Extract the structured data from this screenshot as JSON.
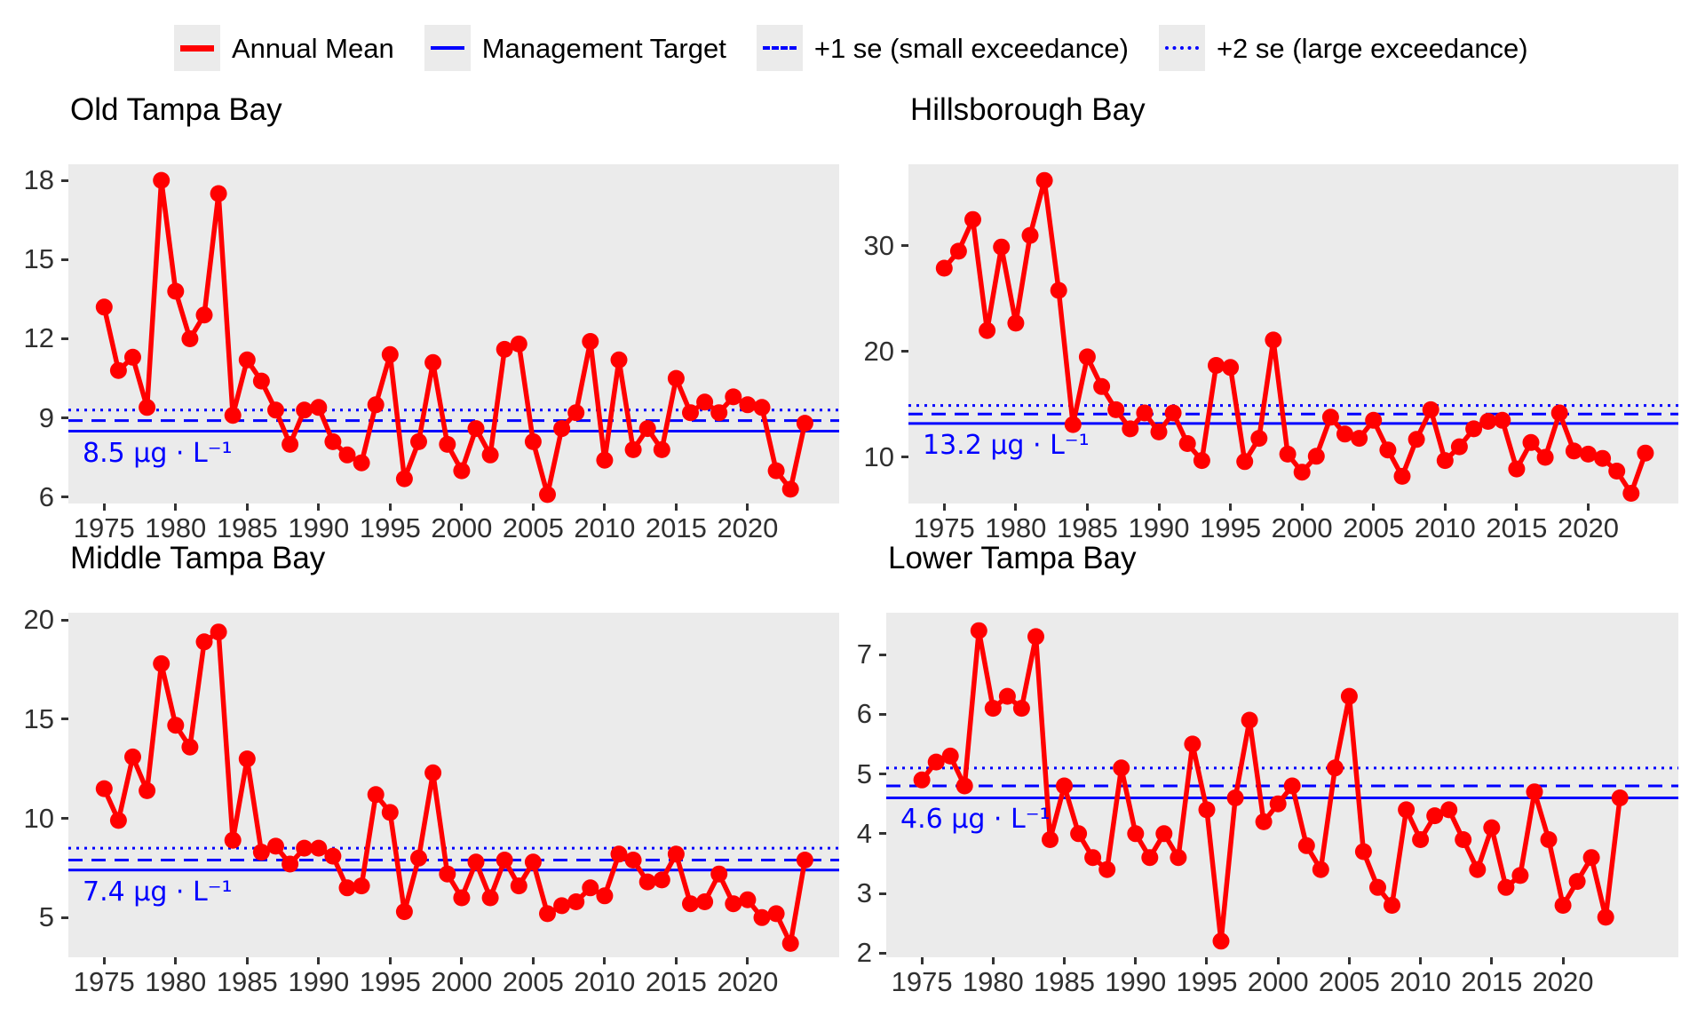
{
  "legend": {
    "items": [
      {
        "id": "annual-mean",
        "label": "Annual Mean",
        "swatch": "red-solid"
      },
      {
        "id": "management-target",
        "label": "Management Target",
        "swatch": "blue-solid"
      },
      {
        "id": "plus-1-se",
        "label": "+1 se (small exceedance)",
        "swatch": "blue-dashed"
      },
      {
        "id": "plus-2-se",
        "label": "+2 se (large exceedance)",
        "swatch": "blue-dotted"
      }
    ]
  },
  "colors": {
    "annual_mean": "#FF0000",
    "reference": "#0000FF",
    "panel_background": "#EBEBEB",
    "axis_text": "#303030",
    "tick_mark": "#333333",
    "legend_key_background": "#EBEBEB"
  },
  "chart_data": [
    {
      "type": "line",
      "title": "Old Tampa Bay",
      "annotation": "8.5 µg · L⁻¹",
      "target": 8.5,
      "plus1se": 8.9,
      "plus2se": 9.3,
      "yticks": [
        6,
        9,
        12,
        15,
        18
      ],
      "xticks": [
        1975,
        1980,
        1985,
        1990,
        1995,
        2000,
        2005,
        2010,
        2015,
        2020
      ],
      "ylim": [
        5.76,
        18.61
      ],
      "xlim": [
        1972.5,
        2026.4
      ],
      "years": [
        1975,
        1976,
        1977,
        1978,
        1979,
        1980,
        1981,
        1982,
        1983,
        1984,
        1985,
        1986,
        1987,
        1988,
        1989,
        1990,
        1991,
        1992,
        1993,
        1994,
        1995,
        1996,
        1997,
        1998,
        1999,
        2000,
        2001,
        2002,
        2003,
        2004,
        2005,
        2006,
        2007,
        2008,
        2009,
        2010,
        2011,
        2012,
        2013,
        2014,
        2015,
        2016,
        2017,
        2018,
        2019,
        2020,
        2021,
        2022,
        2023,
        2024
      ],
      "values": [
        13.2,
        10.8,
        11.3,
        9.4,
        18.0,
        13.8,
        12.0,
        12.9,
        17.5,
        9.1,
        11.2,
        10.4,
        9.3,
        8.0,
        9.3,
        9.4,
        8.1,
        7.6,
        7.3,
        9.5,
        11.4,
        6.7,
        8.1,
        11.1,
        8.0,
        7.0,
        8.6,
        7.6,
        11.6,
        11.8,
        8.1,
        6.1,
        8.6,
        9.2,
        11.9,
        7.4,
        11.2,
        7.8,
        8.6,
        7.8,
        10.5,
        9.2,
        9.6,
        9.2,
        9.8,
        9.5,
        9.4,
        7.0,
        6.3,
        8.8
      ]
    },
    {
      "type": "line",
      "title": "Hillsborough Bay",
      "annotation": "13.2 µg · L⁻¹",
      "target": 13.2,
      "plus1se": 14.1,
      "plus2se": 14.9,
      "yticks": [
        10,
        20,
        30
      ],
      "xticks": [
        1975,
        1980,
        1985,
        1990,
        1995,
        2000,
        2005,
        2010,
        2015,
        2020
      ],
      "ylim": [
        5.63,
        37.73
      ],
      "xlim": [
        1972.5,
        2026.3
      ],
      "years": [
        1975,
        1976,
        1977,
        1978,
        1979,
        1980,
        1981,
        1982,
        1983,
        1984,
        1985,
        1986,
        1987,
        1988,
        1989,
        1990,
        1991,
        1992,
        1993,
        1994,
        1995,
        1996,
        1997,
        1998,
        1999,
        2000,
        2001,
        2002,
        2003,
        2004,
        2005,
        2006,
        2007,
        2008,
        2009,
        2010,
        2011,
        2012,
        2013,
        2014,
        2015,
        2016,
        2017,
        2018,
        2019,
        2020,
        2021,
        2022,
        2023,
        2024
      ],
      "values": [
        27.9,
        29.5,
        32.5,
        22.0,
        29.9,
        22.7,
        31.0,
        36.2,
        25.8,
        13.1,
        19.5,
        16.7,
        14.5,
        12.7,
        14.2,
        12.4,
        14.2,
        11.3,
        9.7,
        18.7,
        18.5,
        9.6,
        11.8,
        21.1,
        10.3,
        8.6,
        10.1,
        13.8,
        12.2,
        11.8,
        13.5,
        10.7,
        8.2,
        11.7,
        14.5,
        9.7,
        11.0,
        12.7,
        13.4,
        13.5,
        8.9,
        11.4,
        10.0,
        14.2,
        10.6,
        10.3,
        9.9,
        8.7,
        6.6,
        10.4
      ]
    },
    {
      "type": "line",
      "title": "Middle Tampa Bay",
      "annotation": "7.4 µg · L⁻¹",
      "target": 7.4,
      "plus1se": 7.9,
      "plus2se": 8.5,
      "yticks": [
        5,
        10,
        15,
        20
      ],
      "xticks": [
        1975,
        1980,
        1985,
        1990,
        1995,
        2000,
        2005,
        2010,
        2015,
        2020
      ],
      "ylim": [
        3.0,
        20.37
      ],
      "xlim": [
        1972.5,
        2026.4
      ],
      "years": [
        1975,
        1976,
        1977,
        1978,
        1979,
        1980,
        1981,
        1982,
        1983,
        1984,
        1985,
        1986,
        1987,
        1988,
        1989,
        1990,
        1991,
        1992,
        1993,
        1994,
        1995,
        1996,
        1997,
        1998,
        1999,
        2000,
        2001,
        2002,
        2003,
        2004,
        2005,
        2006,
        2007,
        2008,
        2009,
        2010,
        2011,
        2012,
        2013,
        2014,
        2015,
        2016,
        2017,
        2018,
        2019,
        2020,
        2021,
        2022,
        2023,
        2024
      ],
      "values": [
        11.5,
        9.9,
        13.1,
        11.4,
        17.8,
        14.7,
        13.6,
        18.9,
        19.4,
        8.9,
        13.0,
        8.3,
        8.6,
        7.7,
        8.5,
        8.5,
        8.1,
        6.5,
        6.6,
        11.2,
        10.3,
        5.3,
        8.0,
        12.3,
        7.2,
        6.0,
        7.8,
        6.0,
        7.9,
        6.6,
        7.8,
        5.2,
        5.6,
        5.8,
        6.5,
        6.1,
        8.2,
        7.9,
        6.8,
        6.9,
        8.2,
        5.7,
        5.8,
        7.2,
        5.7,
        5.9,
        5.0,
        5.2,
        3.7,
        7.9
      ]
    },
    {
      "type": "line",
      "title": "Lower Tampa Bay",
      "annotation": "4.6 µg · L⁻¹",
      "target": 4.6,
      "plus1se": 4.8,
      "plus2se": 5.1,
      "yticks": [
        2,
        3,
        4,
        5,
        6,
        7
      ],
      "xticks": [
        1975,
        1980,
        1985,
        1990,
        1995,
        2000,
        2005,
        2010,
        2015,
        2020
      ],
      "ylim": [
        1.93,
        7.7
      ],
      "xlim": [
        1972.5,
        2028.1
      ],
      "years": [
        1975,
        1976,
        1977,
        1978,
        1979,
        1980,
        1981,
        1982,
        1983,
        1984,
        1985,
        1986,
        1987,
        1988,
        1989,
        1990,
        1991,
        1992,
        1993,
        1994,
        1995,
        1996,
        1997,
        1998,
        1999,
        2000,
        2001,
        2002,
        2003,
        2004,
        2005,
        2006,
        2007,
        2008,
        2009,
        2010,
        2011,
        2012,
        2013,
        2014,
        2015,
        2016,
        2017,
        2018,
        2019,
        2020,
        2021,
        2022,
        2023,
        2024
      ],
      "values": [
        4.9,
        5.2,
        5.3,
        4.8,
        7.4,
        6.1,
        6.3,
        6.1,
        7.3,
        3.9,
        4.8,
        4.0,
        3.6,
        3.4,
        5.1,
        4.0,
        3.6,
        4.0,
        3.6,
        5.5,
        4.4,
        2.2,
        4.6,
        5.9,
        4.2,
        4.5,
        4.8,
        3.8,
        3.4,
        5.1,
        6.3,
        3.7,
        3.1,
        2.8,
        4.4,
        3.9,
        4.3,
        4.4,
        3.9,
        3.4,
        4.1,
        3.1,
        3.3,
        4.7,
        3.9,
        2.8,
        3.2,
        3.6,
        2.6,
        4.6
      ]
    }
  ]
}
